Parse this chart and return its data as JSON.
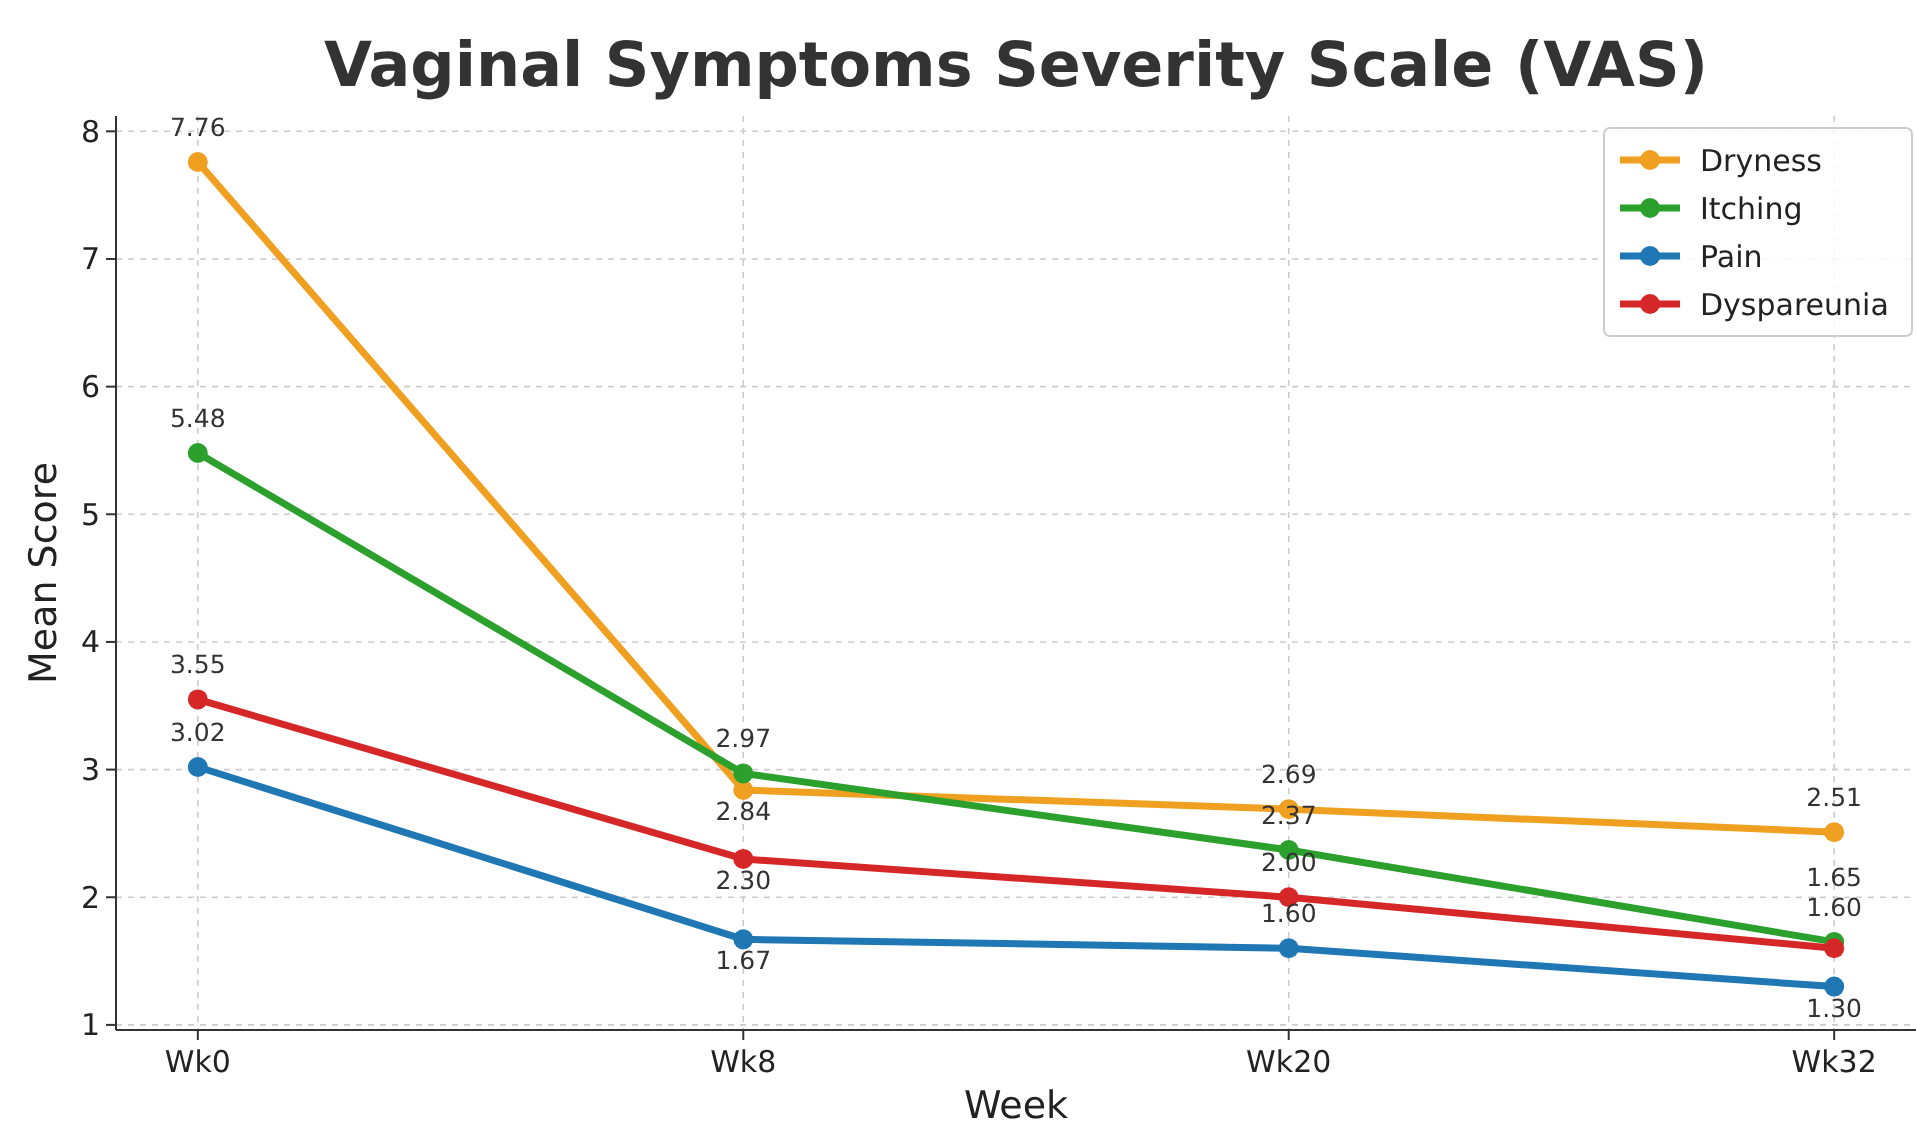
{
  "chart_data": {
    "type": "line",
    "title": "Vaginal Symptoms Severity Scale (VAS)",
    "xlabel": "Week",
    "ylabel": "Mean Score",
    "categories": [
      "Wk0",
      "Wk8",
      "Wk20",
      "Wk32"
    ],
    "series": [
      {
        "name": "Dryness",
        "color": "#f0a020",
        "values": [
          7.76,
          2.84,
          2.69,
          2.51
        ],
        "value_labels": [
          "7.76",
          "2.84",
          "2.69",
          "2.51"
        ]
      },
      {
        "name": "Itching",
        "color": "#2ca02c",
        "values": [
          5.48,
          2.97,
          2.37,
          1.65
        ],
        "value_labels": [
          "5.48",
          "2.97",
          "2.37",
          "1.65"
        ]
      },
      {
        "name": "Pain",
        "color": "#1f77b4",
        "values": [
          3.02,
          1.67,
          1.6,
          1.3
        ],
        "value_labels": [
          "3.02",
          "1.67",
          "1.60",
          "1.30"
        ]
      },
      {
        "name": "Dyspareunia",
        "color": "#d62728",
        "values": [
          3.55,
          2.3,
          2.0,
          1.6
        ],
        "value_labels": [
          "3.55",
          "2.30",
          "2.00",
          "1.60"
        ]
      }
    ],
    "ylim": [
      0.96,
      8.12
    ],
    "yticks": [
      1,
      2,
      3,
      4,
      5,
      6,
      7,
      8
    ],
    "grid": true,
    "legend": "top right",
    "marker": "circle",
    "line_style": "solid"
  }
}
